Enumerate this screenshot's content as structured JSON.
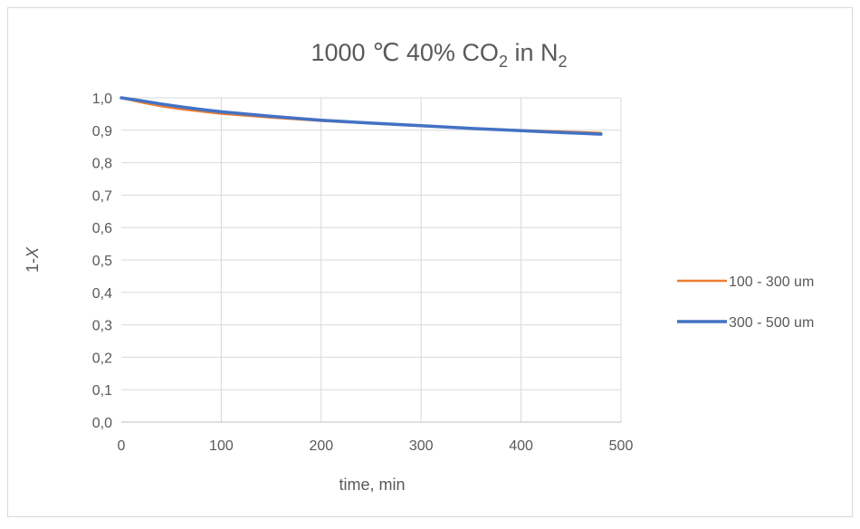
{
  "chart_data": {
    "type": "line",
    "title": "1000 ℃ 40% CO",
    "title_sub1": "2",
    "title_mid": " in N",
    "title_sub2": "2",
    "xlabel": "time, min",
    "ylabel_prefix": "1-",
    "ylabel_var": "X",
    "xlim": [
      0,
      500
    ],
    "ylim": [
      0,
      1.0
    ],
    "x_ticks": [
      "0",
      "100",
      "200",
      "300",
      "400",
      "500"
    ],
    "y_ticks": [
      "0,0",
      "0,1",
      "0,2",
      "0,3",
      "0,4",
      "0,5",
      "0,6",
      "0,7",
      "0,8",
      "0,9",
      "1,0"
    ],
    "grid": true,
    "legend_position": "right",
    "series": [
      {
        "name": "100 - 300 um",
        "color": "#ED7D31",
        "x": [
          0,
          20,
          40,
          60,
          80,
          100,
          150,
          200,
          250,
          300,
          350,
          400,
          450,
          480
        ],
        "y": [
          1.0,
          0.986,
          0.974,
          0.965,
          0.958,
          0.951,
          0.939,
          0.929,
          0.921,
          0.913,
          0.906,
          0.9,
          0.895,
          0.892
        ]
      },
      {
        "name": "300 - 500 um",
        "color": "#4472C4",
        "x": [
          0,
          20,
          40,
          60,
          80,
          100,
          150,
          200,
          250,
          300,
          350,
          400,
          450,
          480
        ],
        "y": [
          1.0,
          0.991,
          0.981,
          0.972,
          0.964,
          0.957,
          0.943,
          0.931,
          0.922,
          0.914,
          0.906,
          0.899,
          0.892,
          0.888
        ]
      }
    ]
  }
}
